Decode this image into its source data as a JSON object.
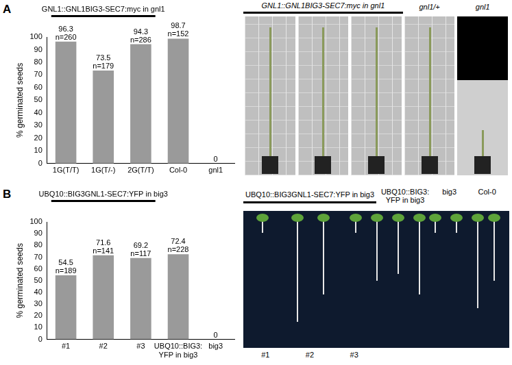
{
  "chart_data": [
    {
      "type": "bar",
      "title": "GNL1::GNL1BIG3-SEC7:myc in gnl1",
      "categories": [
        "1G(T/T)",
        "1G(T/-)",
        "2G(T/T)",
        "Col-0",
        "gnl1"
      ],
      "values": [
        96.3,
        73.5,
        94.3,
        98.7,
        0
      ],
      "n_labels": [
        "n=260",
        "n=179",
        "n=286",
        "n=152",
        null
      ],
      "y_label": "% germinated seeds",
      "color": "#9a9a9a",
      "ylim": [
        0,
        100
      ],
      "yticks": [
        0,
        10,
        20,
        30,
        40,
        50,
        60,
        70,
        80,
        90,
        100
      ],
      "grid": false,
      "data_labels": true
    },
    {
      "type": "bar",
      "title": "UBQ10::BIG3GNL1-SEC7:YFP in big3",
      "categories": [
        "#1",
        "#2",
        "#3",
        "UBQ10::BIG3:YFP in big3",
        "big3"
      ],
      "values": [
        54.5,
        71.6,
        69.2,
        72.4,
        0
      ],
      "n_labels": [
        "n=189",
        "n=141",
        "n=117",
        "n=228",
        null
      ],
      "y_label": "% germinated seeds",
      "color": "#9a9a9a",
      "ylim": [
        0,
        100
      ],
      "yticks": [
        0,
        10,
        20,
        30,
        40,
        50,
        60,
        70,
        80,
        90,
        100
      ],
      "grid": false,
      "data_labels": true
    }
  ],
  "panels": [
    {
      "label": "A",
      "photo": {
        "group_title": "GNL1::GNL1BIG3-SEC7:myc in gnl1",
        "labels": [
          "gnl1/+",
          "gnl1"
        ]
      }
    },
    {
      "label": "B",
      "photo": {
        "group_title": "UBQ10::BIG3GNL1-SEC7:YFP in big3",
        "labels": [
          "UBQ10::BIG3:YFP in big3",
          "big3",
          "Col-0"
        ],
        "bottom_labels": [
          "#1",
          "#2",
          "#3"
        ]
      }
    }
  ]
}
